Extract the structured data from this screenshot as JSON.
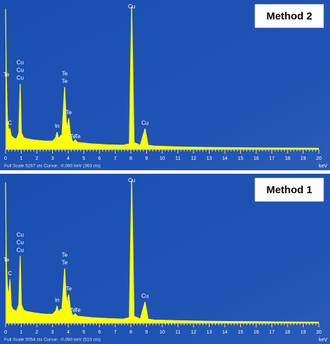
{
  "chart_data": [
    {
      "type": "area",
      "title": "Method 2",
      "color": "#ffff00",
      "x": [
        0,
        0.05,
        0.12,
        0.2,
        0.28,
        0.36,
        0.45,
        0.55,
        0.7,
        0.85,
        0.93,
        1.01,
        1.15,
        1.4,
        1.8,
        2.2,
        2.6,
        3.0,
        3.2,
        3.29,
        3.38,
        3.5,
        3.6,
        3.77,
        3.9,
        4.03,
        4.15,
        4.3,
        4.45,
        4.6,
        5.0,
        5.5,
        6.5,
        7.5,
        7.9,
        8.05,
        8.2,
        8.6,
        8.9,
        9.1,
        9.5,
        11,
        13,
        15,
        17,
        20
      ],
      "values": [
        5100,
        2500,
        1100,
        700,
        750,
        500,
        450,
        400,
        380,
        600,
        2380,
        600,
        420,
        380,
        340,
        320,
        300,
        300,
        420,
        630,
        380,
        500,
        500,
        2260,
        700,
        1130,
        500,
        250,
        350,
        250,
        230,
        200,
        170,
        150,
        200,
        5200,
        250,
        150,
        750,
        150,
        120,
        90,
        70,
        60,
        50,
        40
      ],
      "xlim": [
        0,
        20
      ],
      "ylim": [
        0,
        5267
      ],
      "xticks": [
        0,
        1,
        2,
        3,
        4,
        5,
        6,
        7,
        8,
        9,
        10,
        11,
        12,
        13,
        14,
        15,
        16,
        17,
        18,
        19,
        20
      ],
      "xlabel": "keV",
      "footer": "Full Scale 5267 cts  Cursor: -0.080 keV (363 cts)",
      "annotations": [
        {
          "text": "Te",
          "x": 0.05
        },
        {
          "text": "C",
          "x": 0.28
        },
        {
          "text": "Cu",
          "x": 0.93
        },
        {
          "text": "Cu",
          "x": 0.93
        },
        {
          "text": "Cu",
          "x": 0.93
        },
        {
          "text": "In",
          "x": 3.29
        },
        {
          "text": "Te",
          "x": 3.77
        },
        {
          "text": "Te",
          "x": 3.77
        },
        {
          "text": "In",
          "x": 3.9
        },
        {
          "text": "Te",
          "x": 4.03
        },
        {
          "text": "Te",
          "x": 4.3
        },
        {
          "text": "Te",
          "x": 4.6
        },
        {
          "text": "Cu",
          "x": 8.05
        },
        {
          "text": "Cu",
          "x": 8.9
        }
      ]
    },
    {
      "type": "area",
      "title": "Method 1",
      "color": "#ffff00",
      "x": [
        0,
        0.05,
        0.12,
        0.2,
        0.28,
        0.36,
        0.45,
        0.55,
        0.7,
        0.85,
        0.93,
        1.01,
        1.15,
        1.4,
        1.8,
        2.2,
        2.6,
        3.0,
        3.2,
        3.29,
        3.38,
        3.5,
        3.6,
        3.77,
        3.9,
        4.03,
        4.15,
        4.3,
        4.45,
        4.6,
        5.0,
        5.5,
        6.5,
        7.5,
        7.9,
        8.05,
        8.2,
        8.6,
        8.9,
        9.1,
        9.5,
        11,
        13,
        15,
        17,
        20
      ],
      "values": [
        4900,
        2000,
        1300,
        900,
        1530,
        600,
        500,
        450,
        420,
        650,
        2340,
        650,
        450,
        400,
        360,
        330,
        310,
        310,
        420,
        600,
        380,
        480,
        480,
        1900,
        650,
        1000,
        450,
        250,
        330,
        240,
        220,
        190,
        160,
        140,
        190,
        5000,
        240,
        140,
        740,
        140,
        110,
        85,
        65,
        55,
        45,
        35
      ],
      "xlim": [
        0,
        20
      ],
      "ylim": [
        0,
        5054
      ],
      "xticks": [
        0,
        1,
        2,
        3,
        4,
        5,
        6,
        7,
        8,
        9,
        10,
        11,
        12,
        13,
        14,
        15,
        16,
        17,
        18,
        19,
        20
      ],
      "xlabel": "keV",
      "footer": "Full Scale 5054 cts  Cursor: -0.080 keV (510 cts)",
      "annotations": [
        {
          "text": "Te",
          "x": 0.05
        },
        {
          "text": "C",
          "x": 0.28
        },
        {
          "text": "Cu",
          "x": 0.93
        },
        {
          "text": "Cu",
          "x": 0.93
        },
        {
          "text": "Cu",
          "x": 0.93
        },
        {
          "text": "In",
          "x": 3.29
        },
        {
          "text": "Te",
          "x": 3.77
        },
        {
          "text": "Te",
          "x": 3.77
        },
        {
          "text": "In",
          "x": 3.9
        },
        {
          "text": "Te",
          "x": 4.03
        },
        {
          "text": "Te",
          "x": 4.3
        },
        {
          "text": "Te",
          "x": 4.6
        },
        {
          "text": "Cu",
          "x": 8.05
        },
        {
          "text": "Cu",
          "x": 8.9
        }
      ]
    }
  ]
}
